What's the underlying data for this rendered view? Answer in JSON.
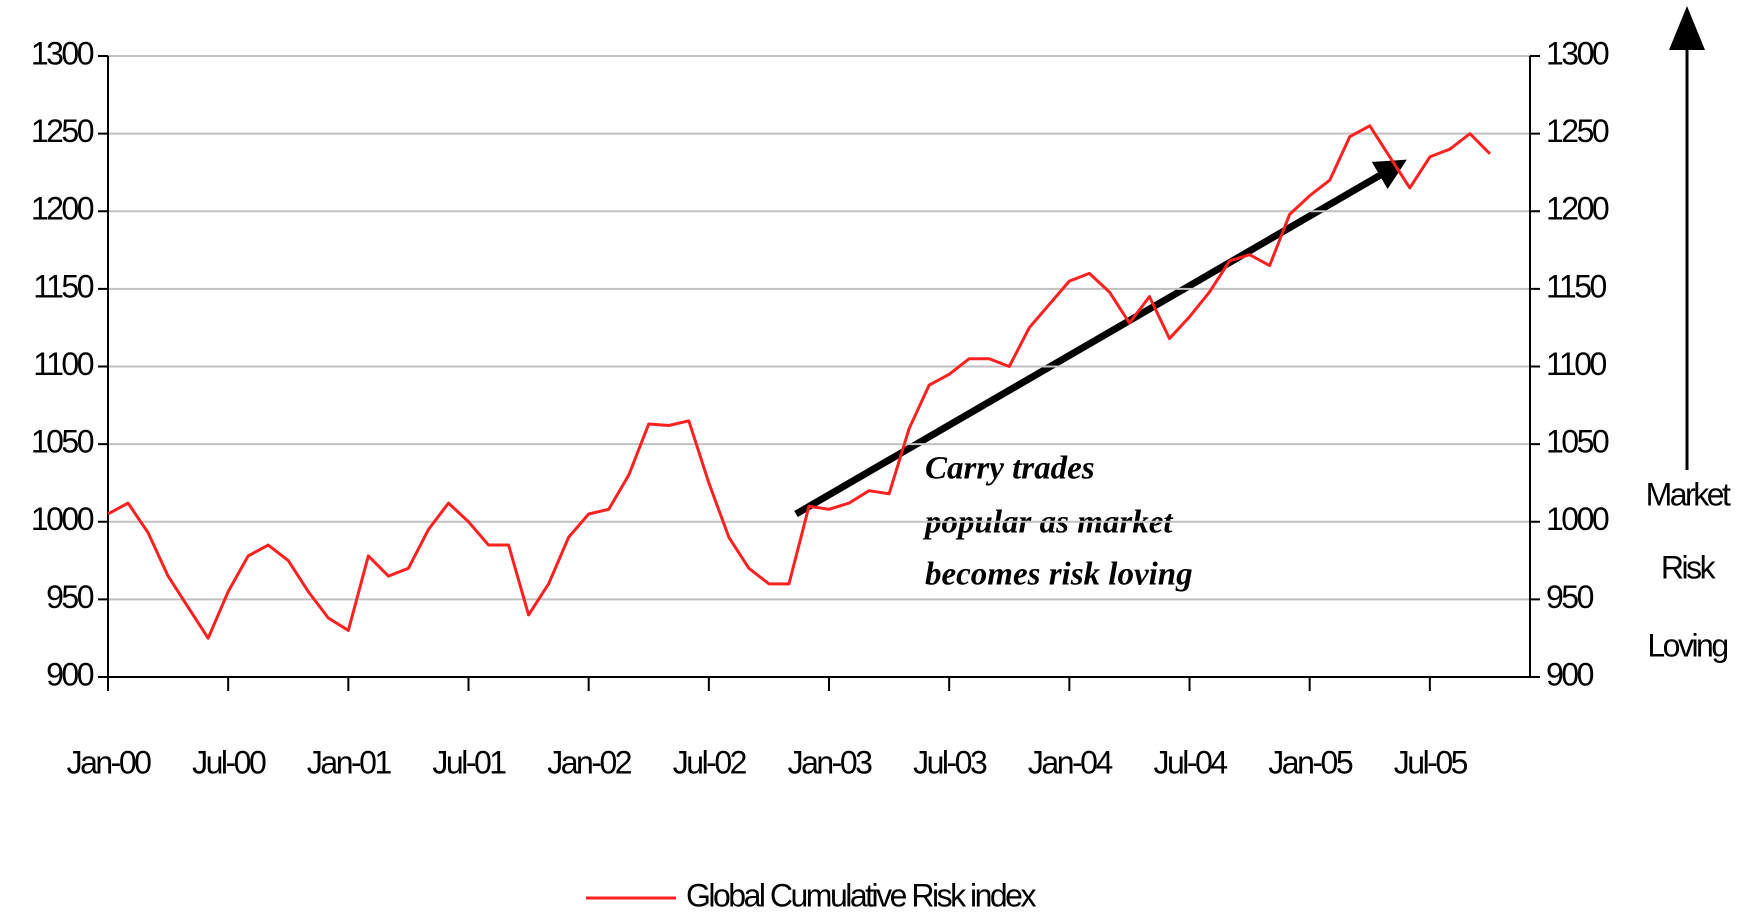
{
  "chart_data": {
    "type": "line",
    "x": [
      "2000-01",
      "2000-02",
      "2000-03",
      "2000-04",
      "2000-05",
      "2000-06",
      "2000-07",
      "2000-08",
      "2000-09",
      "2000-10",
      "2000-11",
      "2000-12",
      "2001-01",
      "2001-02",
      "2001-03",
      "2001-04",
      "2001-05",
      "2001-06",
      "2001-07",
      "2001-08",
      "2001-09",
      "2001-10",
      "2001-11",
      "2001-12",
      "2002-01",
      "2002-02",
      "2002-03",
      "2002-04",
      "2002-05",
      "2002-06",
      "2002-07",
      "2002-08",
      "2002-09",
      "2002-10",
      "2002-11",
      "2002-12",
      "2003-01",
      "2003-02",
      "2003-03",
      "2003-04",
      "2003-05",
      "2003-06",
      "2003-07",
      "2003-08",
      "2003-09",
      "2003-10",
      "2003-11",
      "2003-12",
      "2004-01",
      "2004-02",
      "2004-03",
      "2004-04",
      "2004-05",
      "2004-06",
      "2004-07",
      "2004-08",
      "2004-09",
      "2004-10",
      "2004-11",
      "2004-12",
      "2005-01",
      "2005-02",
      "2005-03",
      "2005-04",
      "2005-05",
      "2005-06",
      "2005-07",
      "2005-08",
      "2005-09",
      "2005-10"
    ],
    "series": [
      {
        "name": "Global Cumulative Risk index",
        "color": "#ff2020",
        "values": [
          1005,
          1012,
          993,
          965,
          945,
          925,
          955,
          978,
          985,
          975,
          955,
          938,
          930,
          978,
          965,
          970,
          995,
          1012,
          1000,
          985,
          985,
          940,
          960,
          990,
          1005,
          1008,
          1030,
          1063,
          1062,
          1065,
          1025,
          990,
          970,
          960,
          960,
          1010,
          1008,
          1012,
          1020,
          1018,
          1060,
          1088,
          1095,
          1105,
          1105,
          1100,
          1125,
          1140,
          1155,
          1160,
          1148,
          1128,
          1145,
          1118,
          1132,
          1148,
          1168,
          1172,
          1165,
          1198,
          1210,
          1220,
          1248,
          1255,
          1235,
          1215,
          1235,
          1240,
          1250,
          1237
        ]
      }
    ],
    "xlim": [
      "2000-01",
      "2005-12"
    ],
    "xticks": [
      {
        "value": "2000-01",
        "label": "Jan-00"
      },
      {
        "value": "2000-07",
        "label": "Jul-00"
      },
      {
        "value": "2001-01",
        "label": "Jan-01"
      },
      {
        "value": "2001-07",
        "label": "Jul-01"
      },
      {
        "value": "2002-01",
        "label": "Jan-02"
      },
      {
        "value": "2002-07",
        "label": "Jul-02"
      },
      {
        "value": "2003-01",
        "label": "Jan-03"
      },
      {
        "value": "2003-07",
        "label": "Jul-03"
      },
      {
        "value": "2004-01",
        "label": "Jan-04"
      },
      {
        "value": "2004-07",
        "label": "Jul-04"
      },
      {
        "value": "2005-01",
        "label": "Jan-05"
      },
      {
        "value": "2005-07",
        "label": "Jul-05"
      }
    ],
    "ylim": [
      900,
      1300
    ],
    "yticks": [
      900,
      950,
      1000,
      1050,
      1100,
      1150,
      1200,
      1250,
      1300
    ],
    "y2lim": [
      900,
      1300
    ],
    "y2ticks": [
      900,
      950,
      1000,
      1050,
      1100,
      1150,
      1200,
      1250,
      1300
    ],
    "grid": true,
    "legend": "bottom",
    "annotation": [
      "Carry trades",
      "popular as market",
      "becomes risk loving"
    ],
    "y2_annotation": [
      "Market",
      "Risk",
      "Loving"
    ]
  }
}
